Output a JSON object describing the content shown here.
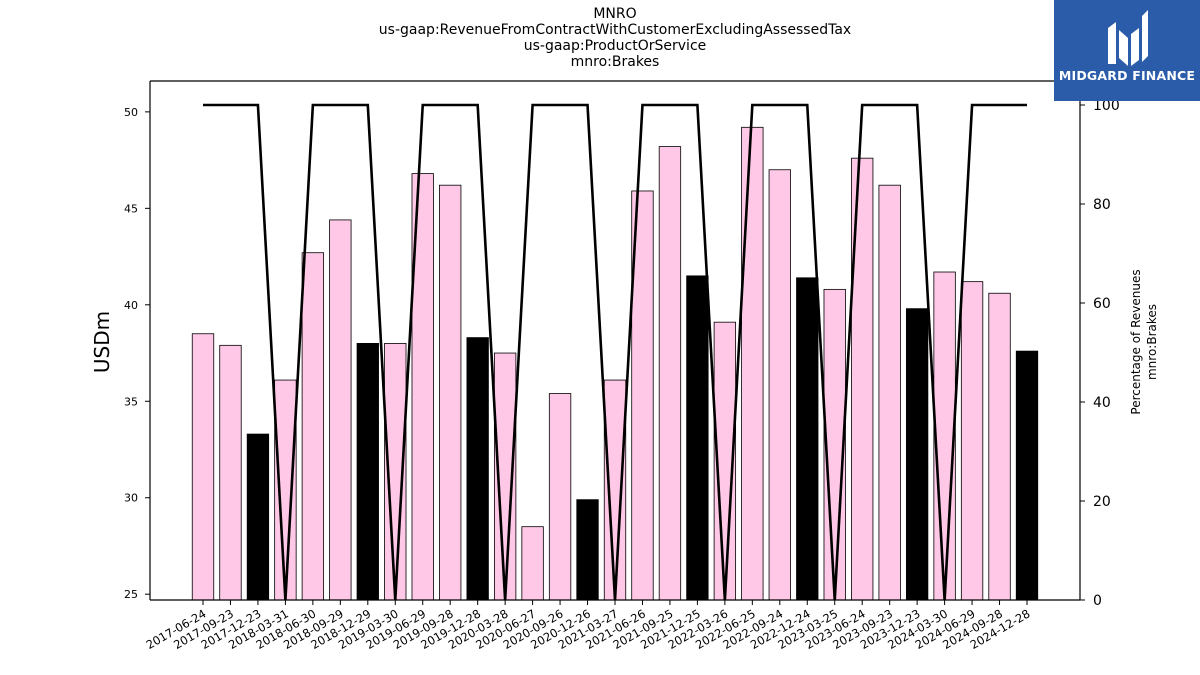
{
  "title_lines": [
    "MNRO",
    "us-gaap:RevenueFromContractWithCustomerExcludingAssessedTax",
    "us-gaap:ProductOrService",
    "mnro:Brakes"
  ],
  "logo": {
    "text": "MIDGARD FINANCE",
    "icon": "midgard-logo-icon",
    "bg_color": "#2a5caa"
  },
  "chart_data": {
    "type": "bar",
    "ylabel": "USDm",
    "y2label_lines": [
      "Percentage of Revenues",
      "mnro:Brakes"
    ],
    "ylim": [
      24.7,
      51.6
    ],
    "y2lim": [
      0,
      100
    ],
    "yticks": [
      25,
      30,
      35,
      40,
      45,
      50
    ],
    "y2ticks": [
      0,
      20,
      40,
      60,
      80,
      100
    ],
    "categories": [
      "2017-06-24",
      "2017-09-23",
      "2017-12-23",
      "2018-03-31",
      "2018-06-30",
      "2018-09-29",
      "2018-12-29",
      "2019-03-30",
      "2019-06-29",
      "2019-09-28",
      "2019-12-28",
      "2020-03-28",
      "2020-06-27",
      "2020-09-26",
      "2020-12-26",
      "2021-03-27",
      "2021-06-26",
      "2021-09-25",
      "2021-12-25",
      "2022-03-26",
      "2022-06-25",
      "2022-09-24",
      "2022-12-24",
      "2023-03-25",
      "2023-06-24",
      "2023-09-23",
      "2023-12-23",
      "2024-03-30",
      "2024-06-29",
      "2024-09-28",
      "2024-12-28"
    ],
    "series": [
      {
        "name": "",
        "kind": "bar",
        "values": [
          38.5,
          37.9,
          33.3,
          36.1,
          42.7,
          44.4,
          38.0,
          38.0,
          46.8,
          46.2,
          38.3,
          37.5,
          28.5,
          35.4,
          29.9,
          36.1,
          45.9,
          48.2,
          41.5,
          39.1,
          49.2,
          47.0,
          41.4,
          40.8,
          47.6,
          46.2,
          39.8,
          41.7,
          41.2,
          40.6,
          37.6
        ],
        "colors": [
          "#ffc8e6",
          "#ffc8e6",
          "#000000",
          "#ffc8e6",
          "#ffc8e6",
          "#ffc8e6",
          "#000000",
          "#ffc8e6",
          "#ffc8e6",
          "#ffc8e6",
          "#000000",
          "#ffc8e6",
          "#ffc8e6",
          "#ffc8e6",
          "#000000",
          "#ffc8e6",
          "#ffc8e6",
          "#ffc8e6",
          "#000000",
          "#ffc8e6",
          "#ffc8e6",
          "#ffc8e6",
          "#000000",
          "#ffc8e6",
          "#ffc8e6",
          "#ffc8e6",
          "#000000",
          "#ffc8e6",
          "#ffc8e6",
          "#ffc8e6",
          "#000000"
        ]
      },
      {
        "name": "",
        "kind": "line",
        "axis": "y2",
        "color": "#000000",
        "values": [
          100,
          100,
          100,
          0,
          100,
          100,
          100,
          0,
          100,
          100,
          100,
          0,
          100,
          100,
          100,
          0,
          100,
          100,
          100,
          0,
          100,
          100,
          100,
          0,
          100,
          100,
          100,
          0,
          100,
          100,
          100
        ]
      }
    ],
    "grid": false,
    "legend": "none"
  }
}
